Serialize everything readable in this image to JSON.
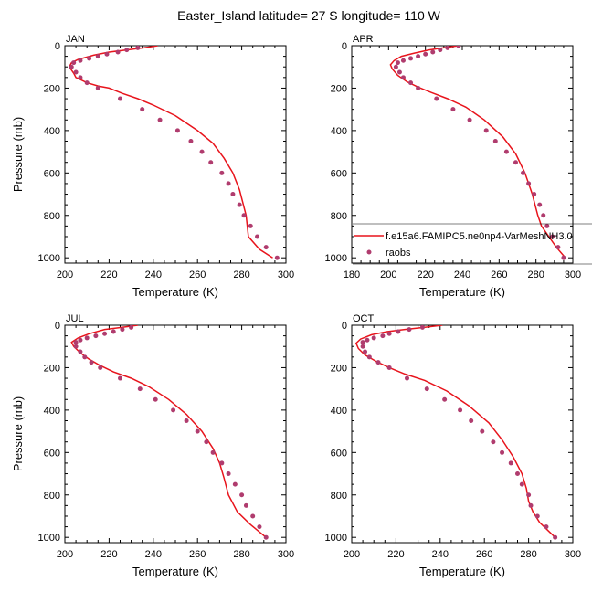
{
  "figure": {
    "title": "Easter_Island  latitude= 27 S longitude= 110 W"
  },
  "legend": {
    "model_label": "f.e15a6.FAMIPC5.ne0np4-VarMeshNH3.0",
    "obs_label": "raobs"
  },
  "colors": {
    "model": "#e8141c",
    "obs": "#b03c6e"
  },
  "chart_data": [
    {
      "type": "line",
      "panel": "JAN",
      "xlabel": "Temperature (K)",
      "ylabel": "Pressure (mb)",
      "xlim": [
        200,
        300
      ],
      "ylim": [
        0,
        1025
      ],
      "y_inverted": true,
      "xticks": [
        200,
        220,
        240,
        260,
        280,
        300
      ],
      "yticks": [
        0,
        200,
        400,
        600,
        800,
        1000
      ],
      "grid": false,
      "series": [
        {
          "name": "f.e15a6.FAMIPC5.ne0np4-VarMeshNH3.0",
          "kind": "line",
          "points": [
            [
              242,
              0
            ],
            [
              236,
              10
            ],
            [
              228,
              20
            ],
            [
              220,
              30
            ],
            [
              213,
              45
            ],
            [
              206,
              65
            ],
            [
              203,
              80
            ],
            [
              202,
              100
            ],
            [
              204,
              130
            ],
            [
              205,
              150
            ],
            [
              210,
              175
            ],
            [
              215,
              190
            ],
            [
              220,
              200
            ],
            [
              226,
              225
            ],
            [
              233,
              250
            ],
            [
              240,
              280
            ],
            [
              250,
              330
            ],
            [
              260,
              400
            ],
            [
              267,
              460
            ],
            [
              272,
              530
            ],
            [
              276,
              600
            ],
            [
              279,
              680
            ],
            [
              282,
              800
            ],
            [
              283,
              900
            ],
            [
              288,
              960
            ],
            [
              294,
              1000
            ]
          ]
        },
        {
          "name": "raobs",
          "kind": "points",
          "points": [
            [
              233,
              10
            ],
            [
              228,
              20
            ],
            [
              224,
              30
            ],
            [
              219,
              40
            ],
            [
              215,
              50
            ],
            [
              211,
              60
            ],
            [
              207,
              70
            ],
            [
              204,
              80
            ],
            [
              203,
              100
            ],
            [
              205,
              125
            ],
            [
              207,
              150
            ],
            [
              210,
              175
            ],
            [
              215,
              200
            ],
            [
              225,
              250
            ],
            [
              235,
              300
            ],
            [
              243,
              350
            ],
            [
              251,
              400
            ],
            [
              257,
              450
            ],
            [
              262,
              500
            ],
            [
              266,
              550
            ],
            [
              271,
              600
            ],
            [
              274,
              650
            ],
            [
              276,
              700
            ],
            [
              279,
              750
            ],
            [
              281,
              800
            ],
            [
              284,
              850
            ],
            [
              287,
              900
            ],
            [
              291,
              950
            ],
            [
              296,
              1000
            ]
          ]
        }
      ]
    },
    {
      "type": "line",
      "panel": "APR",
      "xlabel": "Temperature (K)",
      "ylabel": "",
      "xlim": [
        180,
        300
      ],
      "ylim": [
        0,
        1025
      ],
      "y_inverted": true,
      "xticks": [
        180,
        200,
        220,
        240,
        260,
        280,
        300
      ],
      "yticks": [
        0,
        200,
        400,
        600,
        800,
        1000
      ],
      "grid": false,
      "series": [
        {
          "name": "f.e15a6.FAMIPC5.ne0np4-VarMeshNH3.0",
          "kind": "line",
          "points": [
            [
              238,
              0
            ],
            [
              230,
              10
            ],
            [
              222,
              20
            ],
            [
              214,
              35
            ],
            [
              207,
              50
            ],
            [
              203,
              70
            ],
            [
              201,
              90
            ],
            [
              202,
              110
            ],
            [
              205,
              140
            ],
            [
              210,
              170
            ],
            [
              216,
              195
            ],
            [
              223,
              220
            ],
            [
              232,
              250
            ],
            [
              242,
              290
            ],
            [
              252,
              350
            ],
            [
              262,
              430
            ],
            [
              269,
              510
            ],
            [
              274,
              600
            ],
            [
              278,
              700
            ],
            [
              281,
              800
            ],
            [
              283,
              850
            ],
            [
              287,
              900
            ],
            [
              291,
              950
            ],
            [
              296,
              1000
            ]
          ]
        },
        {
          "name": "raobs",
          "kind": "points",
          "points": [
            [
              238,
              0
            ],
            [
              232,
              10
            ],
            [
              228,
              20
            ],
            [
              224,
              30
            ],
            [
              220,
              40
            ],
            [
              216,
              50
            ],
            [
              212,
              60
            ],
            [
              208,
              70
            ],
            [
              205,
              80
            ],
            [
              204,
              100
            ],
            [
              206,
              125
            ],
            [
              208,
              150
            ],
            [
              212,
              175
            ],
            [
              216,
              200
            ],
            [
              226,
              250
            ],
            [
              235,
              300
            ],
            [
              244,
              350
            ],
            [
              253,
              400
            ],
            [
              258,
              450
            ],
            [
              264,
              500
            ],
            [
              269,
              550
            ],
            [
              273,
              600
            ],
            [
              276,
              650
            ],
            [
              279,
              700
            ],
            [
              282,
              750
            ],
            [
              284,
              800
            ],
            [
              286,
              850
            ],
            [
              289,
              900
            ],
            [
              292,
              950
            ],
            [
              295,
              1000
            ]
          ]
        }
      ]
    },
    {
      "type": "line",
      "panel": "JUL",
      "xlabel": "Temperature (K)",
      "ylabel": "Pressure (mb)",
      "xlim": [
        200,
        300
      ],
      "ylim": [
        0,
        1025
      ],
      "y_inverted": true,
      "xticks": [
        200,
        220,
        240,
        260,
        280,
        300
      ],
      "yticks": [
        0,
        200,
        400,
        600,
        800,
        1000
      ],
      "grid": false,
      "series": [
        {
          "name": "f.e15a6.FAMIPC5.ne0np4-VarMeshNH3.0",
          "kind": "line",
          "points": [
            [
              233,
              0
            ],
            [
              226,
              10
            ],
            [
              218,
              20
            ],
            [
              211,
              40
            ],
            [
              206,
              60
            ],
            [
              203,
              80
            ],
            [
              204,
              100
            ],
            [
              207,
              130
            ],
            [
              211,
              160
            ],
            [
              216,
              190
            ],
            [
              222,
              220
            ],
            [
              230,
              250
            ],
            [
              238,
              290
            ],
            [
              247,
              350
            ],
            [
              255,
              420
            ],
            [
              262,
              500
            ],
            [
              267,
              580
            ],
            [
              270,
              650
            ],
            [
              272,
              720
            ],
            [
              274,
              800
            ],
            [
              278,
              880
            ],
            [
              284,
              940
            ],
            [
              291,
              1000
            ]
          ]
        },
        {
          "name": "raobs",
          "kind": "points",
          "points": [
            [
              230,
              10
            ],
            [
              226,
              20
            ],
            [
              222,
              30
            ],
            [
              218,
              40
            ],
            [
              214,
              50
            ],
            [
              210,
              60
            ],
            [
              207,
              70
            ],
            [
              205,
              80
            ],
            [
              205,
              100
            ],
            [
              207,
              125
            ],
            [
              209,
              150
            ],
            [
              212,
              175
            ],
            [
              216,
              200
            ],
            [
              225,
              250
            ],
            [
              234,
              300
            ],
            [
              241,
              350
            ],
            [
              249,
              400
            ],
            [
              255,
              450
            ],
            [
              260,
              500
            ],
            [
              264,
              550
            ],
            [
              267,
              600
            ],
            [
              271,
              650
            ],
            [
              274,
              700
            ],
            [
              277,
              750
            ],
            [
              280,
              800
            ],
            [
              282,
              850
            ],
            [
              285,
              900
            ],
            [
              288,
              950
            ],
            [
              291,
              1000
            ]
          ]
        }
      ]
    },
    {
      "type": "line",
      "panel": "OCT",
      "xlabel": "Temperature (K)",
      "ylabel": "",
      "xlim": [
        200,
        300
      ],
      "ylim": [
        0,
        1025
      ],
      "y_inverted": true,
      "xticks": [
        200,
        220,
        240,
        260,
        280,
        300
      ],
      "yticks": [
        0,
        200,
        400,
        600,
        800,
        1000
      ],
      "grid": false,
      "series": [
        {
          "name": "f.e15a6.FAMIPC5.ne0np4-VarMeshNH3.0",
          "kind": "line",
          "points": [
            [
              241,
              0
            ],
            [
              233,
              10
            ],
            [
              224,
              20
            ],
            [
              216,
              30
            ],
            [
              209,
              45
            ],
            [
              204,
              65
            ],
            [
              202,
              85
            ],
            [
              203,
              110
            ],
            [
              206,
              140
            ],
            [
              211,
              170
            ],
            [
              217,
              200
            ],
            [
              224,
              230
            ],
            [
              233,
              260
            ],
            [
              243,
              310
            ],
            [
              253,
              380
            ],
            [
              262,
              460
            ],
            [
              268,
              540
            ],
            [
              273,
              620
            ],
            [
              277,
              700
            ],
            [
              279,
              770
            ],
            [
              280,
              830
            ],
            [
              282,
              880
            ],
            [
              285,
              930
            ],
            [
              290,
              980
            ],
            [
              292,
              1000
            ]
          ]
        },
        {
          "name": "raobs",
          "kind": "points",
          "points": [
            [
              232,
              10
            ],
            [
              226,
              20
            ],
            [
              221,
              30
            ],
            [
              217,
              40
            ],
            [
              214,
              50
            ],
            [
              210,
              60
            ],
            [
              207,
              70
            ],
            [
              205,
              80
            ],
            [
              205,
              100
            ],
            [
              206,
              125
            ],
            [
              208,
              150
            ],
            [
              212,
              175
            ],
            [
              217,
              200
            ],
            [
              225,
              250
            ],
            [
              234,
              300
            ],
            [
              242,
              350
            ],
            [
              249,
              400
            ],
            [
              254,
              450
            ],
            [
              259,
              500
            ],
            [
              264,
              550
            ],
            [
              268,
              600
            ],
            [
              272,
              650
            ],
            [
              275,
              700
            ],
            [
              277,
              750
            ],
            [
              280,
              800
            ],
            [
              281,
              850
            ],
            [
              284,
              900
            ],
            [
              288,
              950
            ],
            [
              292,
              1000
            ]
          ]
        }
      ]
    }
  ]
}
